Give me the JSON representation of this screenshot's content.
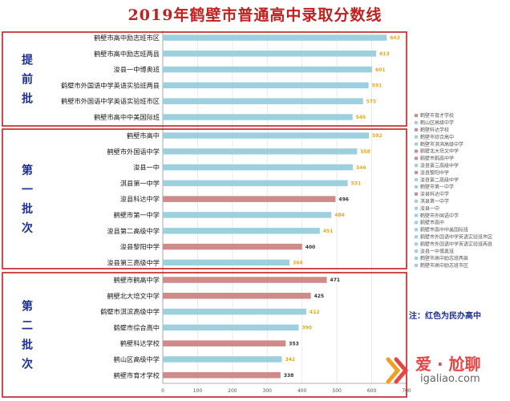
{
  "chart_data": {
    "type": "bar",
    "orientation": "horizontal",
    "title": "2019年鹤壁市普通高中录取分数线",
    "x_ticks": [
      0,
      100,
      200,
      300,
      400,
      500,
      600,
      700
    ],
    "xlim": [
      0,
      700
    ],
    "groups": [
      {
        "title": "提前批",
        "title_chars": [
          "提",
          "前",
          "批"
        ],
        "items": [
          {
            "label": "鹤壁市高中励志班市区",
            "value": 643,
            "private": false
          },
          {
            "label": "鹤壁市高中励志班两县",
            "value": 613,
            "private": false
          },
          {
            "label": "浚县一中博奥班",
            "value": 601,
            "private": false
          },
          {
            "label": "鹤壁市外国语中学英语实验班两县",
            "value": 591,
            "private": false
          },
          {
            "label": "鹤壁市外国语中学英语实验班市区",
            "value": 575,
            "private": false
          },
          {
            "label": "鹤壁市高中中美国际班",
            "value": 545,
            "private": false
          }
        ]
      },
      {
        "title": "第一批次",
        "title_chars": [
          "第",
          "一",
          "批",
          "次"
        ],
        "items": [
          {
            "label": "鹤壁市高中",
            "value": 592,
            "private": false
          },
          {
            "label": "鹤壁市外国语中学",
            "value": 558,
            "private": false
          },
          {
            "label": "浚县一中",
            "value": 546,
            "private": false
          },
          {
            "label": "淇县第一中学",
            "value": 531,
            "private": false
          },
          {
            "label": "浚县科达中学",
            "value": 496,
            "private": true
          },
          {
            "label": "鹤壁市第一中学",
            "value": 484,
            "private": false
          },
          {
            "label": "浚县第二高级中学",
            "value": 451,
            "private": false
          },
          {
            "label": "浚县黎阳中学",
            "value": 400,
            "private": true
          },
          {
            "label": "浚县第三高级中学",
            "value": 364,
            "private": false
          }
        ]
      },
      {
        "title": "第二批次",
        "title_chars": [
          "第",
          "二",
          "批",
          "次"
        ],
        "items": [
          {
            "label": "鹤壁市鹤高中学",
            "value": 471,
            "private": true
          },
          {
            "label": "鹤壁北大培文中学",
            "value": 425,
            "private": true
          },
          {
            "label": "鹤壁市淇滨高级中学",
            "value": 412,
            "private": false
          },
          {
            "label": "鹤壁市综合高中",
            "value": 390,
            "private": false
          },
          {
            "label": "鹤壁科达学校",
            "value": 353,
            "private": true
          },
          {
            "label": "鹤山区高级中学",
            "value": 342,
            "private": false
          },
          {
            "label": "鹤壁市育才学校",
            "value": 338,
            "private": true
          }
        ]
      }
    ],
    "legend": [
      {
        "label": "鹤壁市育才学校",
        "private": true
      },
      {
        "label": "鹤山区高级中学",
        "private": false
      },
      {
        "label": "鹤壁科达学校",
        "private": true
      },
      {
        "label": "鹤壁市综合高中",
        "private": false
      },
      {
        "label": "鹤壁市淇滨高级中学",
        "private": false
      },
      {
        "label": "鹤壁北大培文中学",
        "private": true
      },
      {
        "label": "鹤壁市鹤高中学",
        "private": true
      },
      {
        "label": "浚县第三高级中学",
        "private": false
      },
      {
        "label": "浚县黎阳中学",
        "private": true
      },
      {
        "label": "浚县第二高级中学",
        "private": false
      },
      {
        "label": "鹤壁市第一中学",
        "private": false
      },
      {
        "label": "浚县科达中学",
        "private": true
      },
      {
        "label": "淇县第一中学",
        "private": false
      },
      {
        "label": "浚县一中",
        "private": false
      },
      {
        "label": "鹤壁市外国语中学",
        "private": false
      },
      {
        "label": "鹤壁市高中",
        "private": false
      },
      {
        "label": "鹤壁市高中中美国际班",
        "private": false
      },
      {
        "label": "鹤壁市外国语中学英语实验班市区",
        "private": false
      },
      {
        "label": "鹤壁市外国语中学英语实验班两县",
        "private": false
      },
      {
        "label": "浚县一中博奥班",
        "private": false
      },
      {
        "label": "鹤壁市高中励志班两县",
        "private": false
      },
      {
        "label": "鹤壁市高中励志班市区",
        "private": false
      }
    ],
    "note": "注：红色为民办高中",
    "colors": {
      "public": "#9dd0de",
      "private": "#cf8a8a",
      "value_public": "#e8a81e",
      "value_private": "#333333",
      "frame": "#c0201e",
      "group_title": "#1c2f96"
    }
  },
  "watermark": {
    "cn": "爱 · 尬聊",
    "url": "igaliao.com"
  }
}
